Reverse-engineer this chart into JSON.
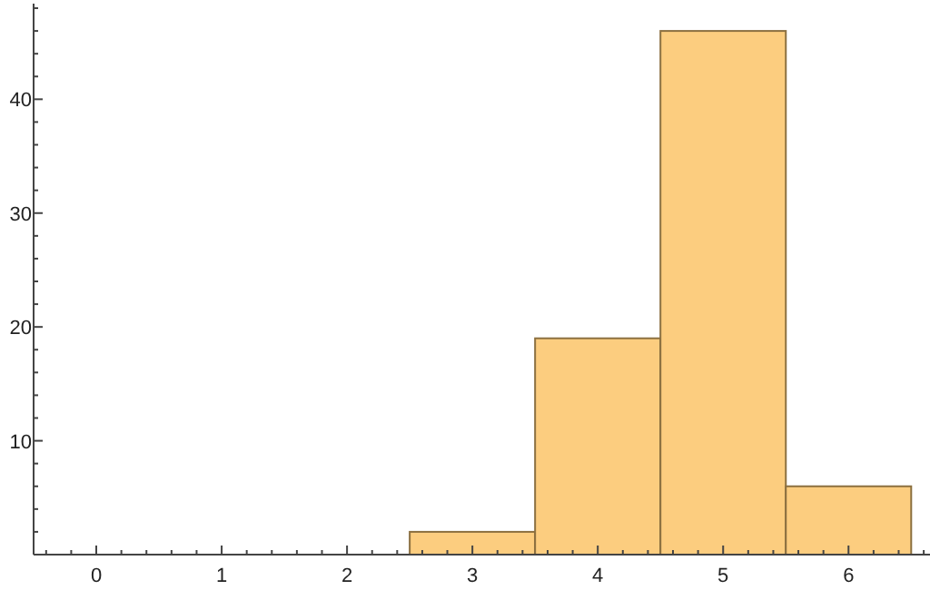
{
  "chart_data": {
    "type": "histogram",
    "bins": [
      2.5,
      3.5,
      4.5,
      5.5,
      6.5
    ],
    "values": [
      2,
      19,
      46,
      6
    ],
    "color": "#fccd7f",
    "xlim": [
      -0.5,
      6.65
    ],
    "ylim": [
      0,
      48.4
    ],
    "xticks": [
      {
        "value": -0.4,
        "label": null
      },
      {
        "value": -0.2,
        "label": null
      },
      0,
      {
        "value": 0.2,
        "label": null
      },
      {
        "value": 0.4,
        "label": null
      },
      {
        "value": 0.6,
        "label": null
      },
      {
        "value": 0.8,
        "label": null
      },
      1,
      {
        "value": 1.2,
        "label": null
      },
      {
        "value": 1.4,
        "label": null
      },
      {
        "value": 1.6,
        "label": null
      },
      {
        "value": 1.8,
        "label": null
      },
      2,
      {
        "value": 2.2,
        "label": null
      },
      {
        "value": 2.4,
        "label": null
      },
      {
        "value": 2.6,
        "label": null
      },
      {
        "value": 2.8,
        "label": null
      },
      3,
      {
        "value": 3.2,
        "label": null
      },
      {
        "value": 3.4,
        "label": null
      },
      {
        "value": 3.6,
        "label": null
      },
      {
        "value": 3.8,
        "label": null
      },
      4,
      {
        "value": 4.2,
        "label": null
      },
      {
        "value": 4.4,
        "label": null
      },
      {
        "value": 4.6,
        "label": null
      },
      {
        "value": 4.8,
        "label": null
      },
      5,
      {
        "value": 5.2,
        "label": null
      },
      {
        "value": 5.4,
        "label": null
      },
      {
        "value": 5.6,
        "label": null
      },
      {
        "value": 5.8,
        "label": null
      },
      6,
      {
        "value": 6.2,
        "label": null
      },
      {
        "value": 6.4,
        "label": null
      },
      {
        "value": 6.6,
        "label": null
      }
    ],
    "yticks": [
      {
        "value": 2,
        "label": null
      },
      {
        "value": 4,
        "label": null
      },
      {
        "value": 6,
        "label": null
      },
      {
        "value": 8,
        "label": null
      },
      10,
      {
        "value": 12,
        "label": null
      },
      {
        "value": 14,
        "label": null
      },
      {
        "value": 16,
        "label": null
      },
      {
        "value": 18,
        "label": null
      },
      20,
      {
        "value": 22,
        "label": null
      },
      {
        "value": 24,
        "label": null
      },
      {
        "value": 26,
        "label": null
      },
      {
        "value": 28,
        "label": null
      },
      30,
      {
        "value": 32,
        "label": null
      },
      {
        "value": 34,
        "label": null
      },
      {
        "value": 36,
        "label": null
      },
      {
        "value": 38,
        "label": null
      },
      40,
      {
        "value": 42,
        "label": null
      },
      {
        "value": 44,
        "label": null
      },
      {
        "value": 46,
        "label": null
      },
      {
        "value": 48,
        "label": null
      }
    ]
  }
}
